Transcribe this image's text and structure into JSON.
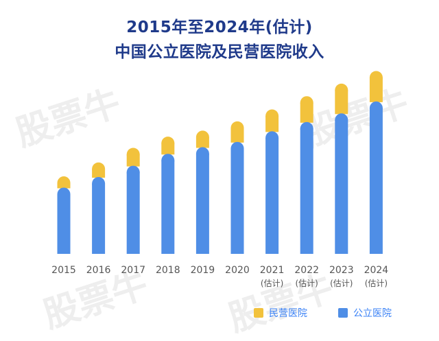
{
  "title": {
    "line1": "2015年至2024年(估计)",
    "line2": "中国公立医院及民营医院收入"
  },
  "watermark": "股票牛",
  "colors": {
    "public": "#4f8ee6",
    "private": "#f2c23c",
    "title": "#1f3a8a"
  },
  "chart_data": {
    "type": "bar",
    "stacked": true,
    "title": "2015年至2024年(估计) 中国公立医院及民营医院收入",
    "categories": [
      "2015",
      "2016",
      "2017",
      "2018",
      "2019",
      "2020",
      "2021",
      "2022",
      "2023",
      "2024"
    ],
    "sublabels": [
      "",
      "",
      "",
      "",
      "",
      "",
      "(估计)",
      "(估计)",
      "(估计)",
      "(估计)"
    ],
    "series": [
      {
        "name": "公立医院",
        "values": [
          100,
          116,
          133,
          151,
          161,
          169,
          185,
          199,
          212,
          230
        ]
      },
      {
        "name": "民营医院",
        "values": [
          17,
          22,
          27,
          26,
          25,
          31,
          33,
          39,
          45,
          46
        ]
      }
    ],
    "ylim": [
      0,
      290
    ],
    "legend": "bottom-right",
    "grid": false,
    "xlabel": "",
    "ylabel": ""
  },
  "legend": {
    "private_label": "民营医院",
    "public_label": "公立医院"
  }
}
